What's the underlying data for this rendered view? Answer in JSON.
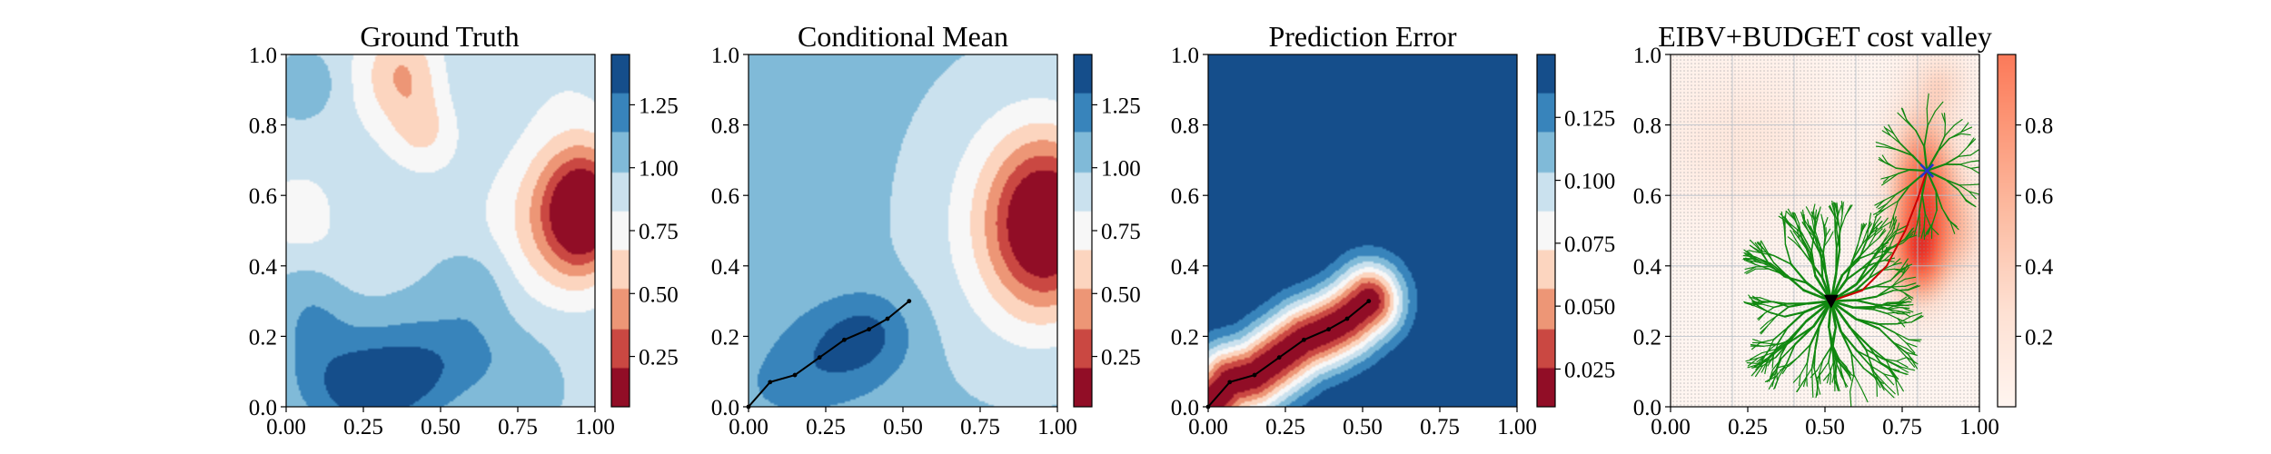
{
  "chart_data": [
    {
      "type": "heatmap",
      "title": "Ground Truth",
      "colormap": "RdBu",
      "xlim": [
        0.0,
        1.0
      ],
      "ylim": [
        0.0,
        1.0
      ],
      "xticks": [
        "0.00",
        "0.25",
        "0.50",
        "0.75",
        "1.00"
      ],
      "yticks": [
        "0.0",
        "0.2",
        "0.4",
        "0.6",
        "0.8",
        "1.0"
      ],
      "colorbar": {
        "range": [
          0.05,
          1.45
        ],
        "levels": 9,
        "ticks": [
          0.25,
          0.5,
          0.75,
          1.0,
          1.25
        ],
        "tick_labels": [
          "0.25",
          "0.50",
          "0.75",
          "1.00",
          "1.25"
        ]
      },
      "features": [
        {
          "kind": "low",
          "x": 0.97,
          "y": 0.55,
          "magnitude": 1.25
        },
        {
          "kind": "low",
          "x": 0.38,
          "y": 0.95,
          "magnitude": 0.45
        },
        {
          "kind": "low",
          "x": 0.08,
          "y": 0.55,
          "magnitude": 0.35
        },
        {
          "kind": "high",
          "x": 0.32,
          "y": 0.05,
          "magnitude": 0.55
        }
      ]
    },
    {
      "type": "heatmap",
      "title": "Conditional Mean",
      "colormap": "RdBu",
      "xlim": [
        0.0,
        1.0
      ],
      "ylim": [
        0.0,
        1.0
      ],
      "xticks": [
        "0.00",
        "0.25",
        "0.50",
        "0.75",
        "1.00"
      ],
      "yticks": [
        "0.0",
        "0.2",
        "0.4",
        "0.6",
        "0.8",
        "1.0"
      ],
      "colorbar": {
        "range": [
          0.05,
          1.45
        ],
        "levels": 9,
        "ticks": [
          0.25,
          0.5,
          0.75,
          1.0,
          1.25
        ],
        "tick_labels": [
          "0.25",
          "0.50",
          "0.75",
          "1.00",
          "1.25"
        ]
      },
      "path": {
        "x": [
          0.0,
          0.07,
          0.15,
          0.23,
          0.31,
          0.39,
          0.45,
          0.52
        ],
        "y": [
          0.0,
          0.07,
          0.09,
          0.14,
          0.19,
          0.22,
          0.25,
          0.3
        ]
      }
    },
    {
      "type": "heatmap",
      "title": "Prediction Error",
      "colormap": "RdBu",
      "xlim": [
        0.0,
        1.0
      ],
      "ylim": [
        0.0,
        1.0
      ],
      "xticks": [
        "0.00",
        "0.25",
        "0.50",
        "0.75",
        "1.00"
      ],
      "yticks": [
        "0.0",
        "0.2",
        "0.4",
        "0.6",
        "0.8",
        "1.0"
      ],
      "colorbar": {
        "range": [
          0.01,
          0.15
        ],
        "levels": 9,
        "ticks": [
          0.025,
          0.05,
          0.075,
          0.1,
          0.125
        ],
        "tick_labels": [
          "0.025",
          "0.050",
          "0.075",
          "0.100",
          "0.125"
        ]
      },
      "path": {
        "x": [
          0.0,
          0.07,
          0.15,
          0.23,
          0.31,
          0.39,
          0.45,
          0.52
        ],
        "y": [
          0.0,
          0.07,
          0.09,
          0.14,
          0.19,
          0.22,
          0.25,
          0.3
        ]
      }
    },
    {
      "type": "heatmap",
      "title": "EIBV+BUDGET cost valley",
      "colormap": "Reds",
      "xlim": [
        0.0,
        1.0
      ],
      "ylim": [
        0.0,
        1.0
      ],
      "xticks": [
        "0.00",
        "0.25",
        "0.50",
        "0.75",
        "1.00"
      ],
      "yticks": [
        "0.0",
        "0.2",
        "0.4",
        "0.6",
        "0.8",
        "1.0"
      ],
      "colorbar": {
        "range": [
          0.0,
          1.0
        ],
        "ticks": [
          0.2,
          0.4,
          0.6,
          0.8
        ],
        "tick_labels": [
          "0.2",
          "0.4",
          "0.6",
          "0.8"
        ]
      },
      "current_location": {
        "x": 0.52,
        "y": 0.3
      },
      "next_waypoint": {
        "x": 0.83,
        "y": 0.67
      },
      "tree_color": "#118811",
      "path_color": "#cc0000"
    }
  ]
}
